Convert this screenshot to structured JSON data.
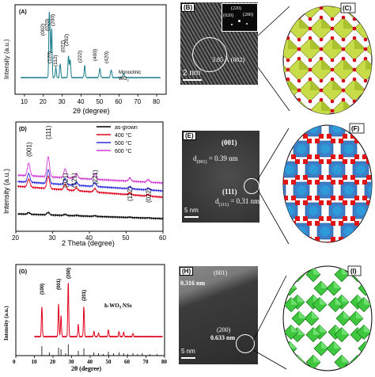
{
  "panelA": {
    "label": "(A)",
    "ylabel": "Intensity (a.u.)",
    "xlabel": "2θ (degree)",
    "xticks": [
      "10",
      "20",
      "30",
      "40",
      "50",
      "60",
      "70",
      "80"
    ],
    "peak_labels": [
      "(002)",
      "(020)",
      "(200)",
      "(120)",
      "(112)",
      "(022)",
      "(202)",
      "(222)",
      "(400)",
      "(420)"
    ],
    "note_line1": "Monoclinic",
    "note_line2": "WO",
    "note_sub": "3"
  },
  "panelB": {
    "label": "(B)",
    "fft_labels": [
      "(220)",
      "(020)",
      "(200)"
    ],
    "spacing": "3.85 Å (002)",
    "scale": "2 nm"
  },
  "panelC": {
    "label": "(C)"
  },
  "panelD": {
    "label": "(D)",
    "ylabel": "Intensity (a.u.)",
    "xlabel": "2 Theta (degree)",
    "xticks": [
      "20",
      "30",
      "40",
      "50",
      "60"
    ],
    "peak_labels": [
      "(001)",
      "(111)",
      "(021)",
      "(121)",
      "(221)",
      "(112)",
      "(022)"
    ],
    "legend": [
      {
        "name": "as-grown",
        "color": "#000000"
      },
      {
        "name": "400 °C",
        "color": "#e0001a"
      },
      {
        "name": "500 °C",
        "color": "#2a2ae0"
      },
      {
        "name": "600 °C",
        "color": "#d23ad2"
      }
    ]
  },
  "panelE": {
    "label": "(E)",
    "plane1": "(001)",
    "d1_label": "d",
    "d1_sub": "(001)",
    "d1_value": "= 0.39 nm",
    "plane2": "(111)",
    "d2_label": "d",
    "d2_sub": "(111)",
    "d2_value": "= 0.31 nm",
    "scale": "5 nm"
  },
  "panelF": {
    "label": "(F)"
  },
  "panelG": {
    "label": "(G)",
    "ylabel": "Intensity (a.u.)",
    "xlabel": "2θ (degree)",
    "xticks": [
      "0",
      "10",
      "20",
      "30",
      "40",
      "50",
      "60",
      "70",
      "80"
    ],
    "peak_labels": [
      "(100)",
      "(001)",
      "(200)",
      "(201)"
    ],
    "sample": "h-WO",
    "sample_sub": "3",
    "sample_suffix": " NSs"
  },
  "panelH": {
    "label": "(H)",
    "spacing1": "0.316 nm",
    "plane1": "(001)",
    "plane2": "(200)",
    "spacing2": "0.633 nm",
    "scale": "5 nm"
  },
  "panelI": {
    "label": "(I)"
  }
}
